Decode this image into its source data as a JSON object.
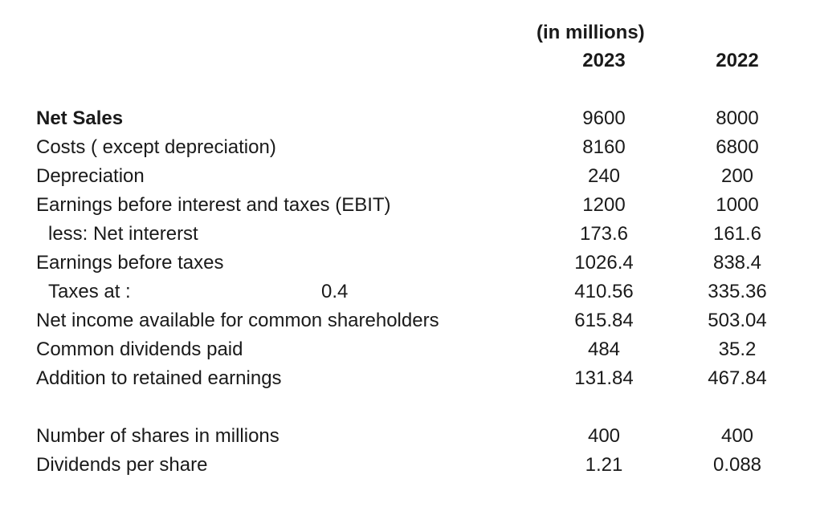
{
  "header": {
    "units": "(in  millions)",
    "year_2023": "2023",
    "year_2022": "2022"
  },
  "rows": [
    {
      "label": "Net Sales",
      "v2023": "9600",
      "v2022": "8000"
    },
    {
      "label": "Costs ( except depreciation)",
      "v2023": "8160",
      "v2022": "6800"
    },
    {
      "label": "Depreciation",
      "v2023": "240",
      "v2022": "200"
    },
    {
      "label": "Earnings before interest and taxes (EBIT)",
      "v2023": "1200",
      "v2022": "1000"
    },
    {
      "label": "less: Net intererst",
      "v2023": "173.6",
      "v2022": "161.6"
    },
    {
      "label": "Earnings before taxes",
      "v2023": "1026.4",
      "v2022": "838.4"
    },
    {
      "label": "Taxes at :",
      "rate": "0.4",
      "v2023": "410.56",
      "v2022": "335.36"
    },
    {
      "label": "Net income available for common shareholders",
      "v2023": "615.84",
      "v2022": "503.04"
    },
    {
      "label": "Common dividends paid",
      "v2023": "484",
      "v2022": "35.2"
    },
    {
      "label": "Addition to retained earnings",
      "v2023": "131.84",
      "v2022": "467.84"
    }
  ],
  "extra_rows": [
    {
      "label": "Number of shares in millions",
      "v2023": "400",
      "v2022": "400"
    },
    {
      "label": "Dividends per share",
      "v2023": "1.21",
      "v2022": "0.088"
    }
  ]
}
